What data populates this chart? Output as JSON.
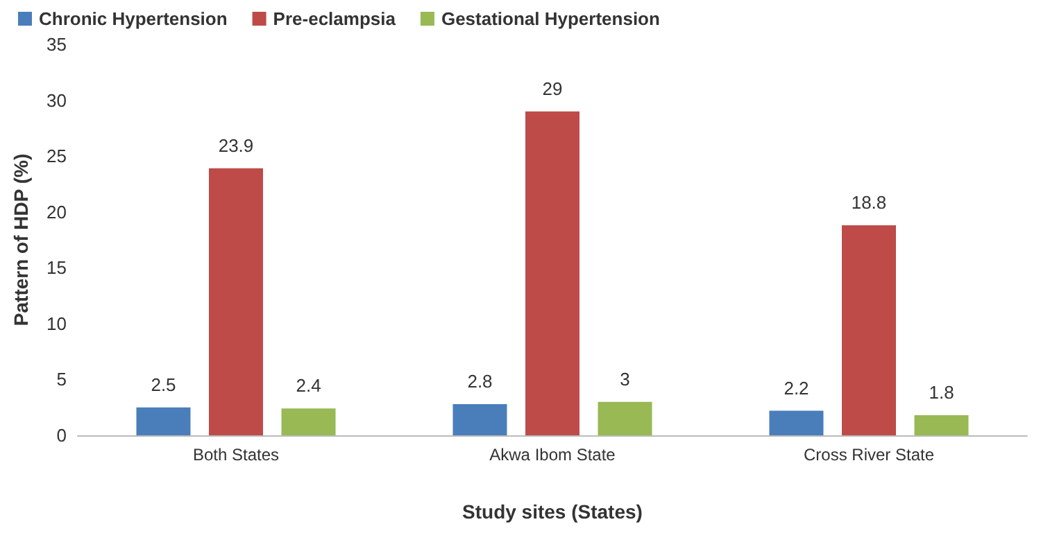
{
  "chart_data": {
    "type": "bar",
    "xlabel": "Study sites (States)",
    "ylabel": "Pattern of HDP (%)",
    "categories": [
      "Both States",
      "Akwa Ibom State",
      "Cross River State"
    ],
    "series": [
      {
        "name": "Chronic Hypertension",
        "color": "#4a7ebb",
        "values": [
          2.5,
          2.8,
          2.2
        ]
      },
      {
        "name": "Pre-eclampsia",
        "color": "#be4b48",
        "values": [
          23.9,
          29,
          18.8
        ]
      },
      {
        "name": "Gestational Hypertension",
        "color": "#98b954",
        "values": [
          2.4,
          3,
          1.8
        ]
      }
    ],
    "ylim": [
      0,
      35
    ],
    "yticks": [
      0,
      5,
      10,
      15,
      20,
      25,
      30,
      35
    ],
    "grid": false,
    "legend": "top left",
    "data_labels": true
  }
}
